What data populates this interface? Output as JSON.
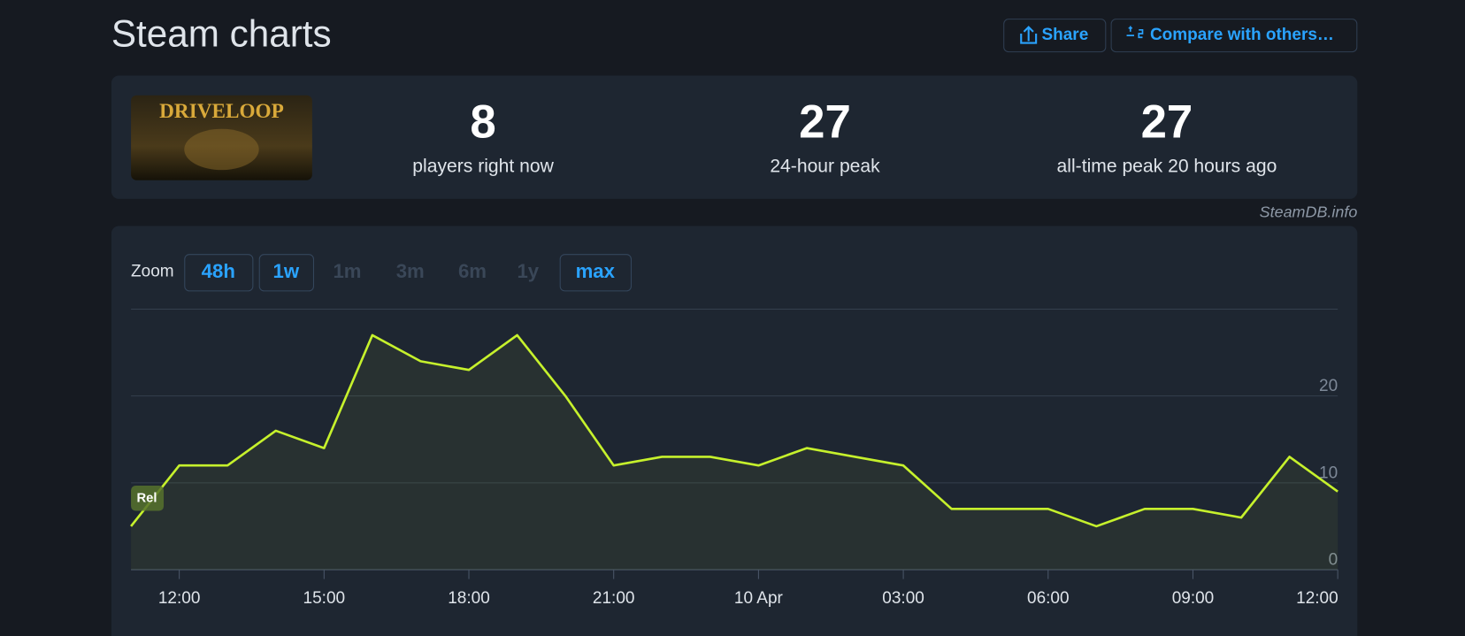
{
  "header": {
    "title": "Steam charts",
    "buttons": [
      "Share",
      "Compare with others…"
    ]
  },
  "game": {
    "name": "DRIVELOOP"
  },
  "stats": [
    {
      "value": "8",
      "label": "players right now"
    },
    {
      "value": "27",
      "label": "24-hour peak"
    },
    {
      "value": "27",
      "label": "all-time peak 20 hours ago"
    }
  ],
  "source": "SteamDB.info",
  "zoom": {
    "label": "Zoom",
    "options": [
      {
        "label": "48h",
        "enabled": true
      },
      {
        "label": "1w",
        "enabled": true
      },
      {
        "label": "1m",
        "enabled": false
      },
      {
        "label": "3m",
        "enabled": false
      },
      {
        "label": "6m",
        "enabled": false
      },
      {
        "label": "1y",
        "enabled": false
      },
      {
        "label": "max",
        "enabled": true
      }
    ]
  },
  "marker": "Rel",
  "chart_data": {
    "type": "line",
    "categories": [
      null,
      "12:00",
      null,
      null,
      "15:00",
      null,
      null,
      "18:00",
      null,
      null,
      "21:00",
      null,
      null,
      "10 Apr",
      null,
      null,
      "03:00",
      null,
      null,
      "06:00",
      null,
      null,
      "09:00",
      null,
      null,
      "12:00"
    ],
    "values": [
      5,
      12,
      12,
      16,
      14,
      27,
      24,
      23,
      27,
      20,
      12,
      13,
      13,
      12,
      14,
      13,
      12,
      7,
      7,
      7,
      5,
      7,
      7,
      6,
      13,
      9
    ],
    "color": "#c6f12c",
    "ylim": [
      0,
      30
    ],
    "yticks": [
      0,
      10,
      20
    ],
    "grid": true
  }
}
